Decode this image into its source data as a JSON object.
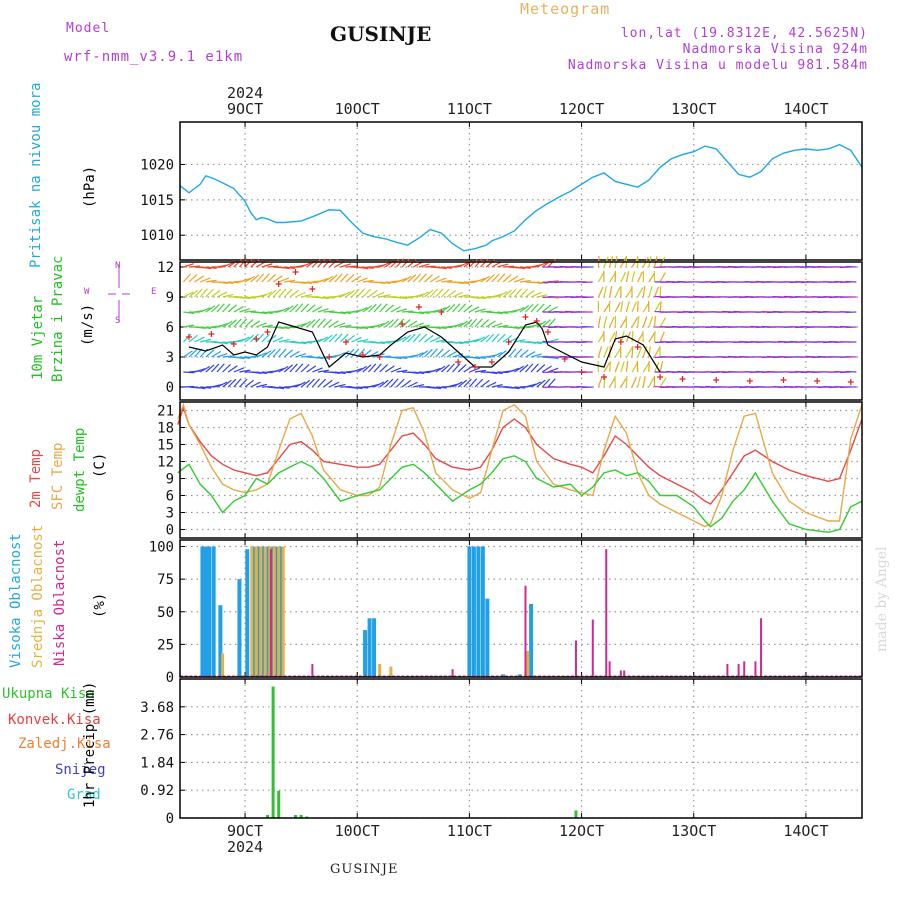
{
  "header": {
    "title": "GUSINJE",
    "model_label": "Model",
    "model_name": "wrf-nmm_v3.9.1 e1km",
    "meteogram_label": "Meteogram",
    "lonlat": "lon,lat (19.8312E, 42.5625N)",
    "elevation": "Nadmorska Visina 924m",
    "model_elevation": "Nadmorska Visina u modelu 981.584m"
  },
  "footer": {
    "station": "GUSINJE",
    "credit": "made by Angel"
  },
  "colors": {
    "pressure": "#1fa8e6",
    "temp2m": "#e84848",
    "sfc": "#e8a848",
    "dewpt": "#30cc30",
    "high_cloud": "#20a0e8",
    "mid_cloud": "#e8b040",
    "low_cloud": "#d02890",
    "total_precip": "#30c030",
    "conv_precip": "#e84040",
    "frz_precip": "#f08030",
    "snow": "#4040d0",
    "grad": "#30c8c8",
    "wind_gust": "#e02020",
    "wind_speed": "#000000"
  },
  "time_axis": {
    "ticks": [
      "9OCT",
      "10OCT",
      "11OCT",
      "12OCT",
      "13OCT",
      "14OCT"
    ],
    "year": "2024",
    "start": "2024-10-08T10:00",
    "end": "2024-10-14T12:00"
  },
  "panels": {
    "pressure": {
      "label": "Pritisak na nivou mora",
      "unit": "(hPa)"
    },
    "wind": {
      "label1": "10m Vjetar",
      "label2": "Brzina i Pravac",
      "unit": "(m/s)",
      "compass": {
        "w": "W",
        "e": "E",
        "n": "N",
        "s": "S"
      }
    },
    "temp": {
      "label_2m": "2m Temp",
      "label_sfc": "SFC Temp",
      "label_dew": "dewpt Temp",
      "unit": "(C)"
    },
    "cloud": {
      "label_high": "Visoka Oblacnost",
      "label_mid": "Srednja Oblacnost",
      "label_low": "Niska Oblacnost",
      "unit": "(%)"
    },
    "precip": {
      "labels": [
        "Ukupna Kisa",
        "Konvek.Kisa",
        "Zaledj.Kisa",
        "Snijeg",
        "Grad"
      ],
      "unit": "1hr Precip (mm)"
    }
  },
  "chart_data": [
    {
      "type": "line",
      "title": "",
      "ylabel": "(hPa)",
      "ylim": [
        1006.5,
        1026
      ],
      "yticks": [
        1010,
        1015,
        1020
      ],
      "series": [
        {
          "name": "Pritisak na nivou mora",
          "x_days": [
            8.42,
            8.5,
            8.6,
            8.65,
            8.72,
            8.8,
            8.9,
            9.0,
            9.05,
            9.1,
            9.15,
            9.2,
            9.28,
            9.35,
            9.5,
            9.6,
            9.75,
            9.85,
            9.95,
            10.05,
            10.15,
            10.25,
            10.35,
            10.45,
            10.55,
            10.65,
            10.75,
            10.85,
            10.95,
            11.05,
            11.15,
            11.2,
            11.3,
            11.4,
            11.5,
            11.6,
            11.7,
            11.8,
            11.9,
            12.0,
            12.1,
            12.2,
            12.3,
            12.4,
            12.5,
            12.6,
            12.7,
            12.8,
            12.9,
            13.0,
            13.1,
            13.2,
            13.3,
            13.4,
            13.5,
            13.6,
            13.7,
            13.8,
            13.9,
            14.0,
            14.1,
            14.2,
            14.3,
            14.4,
            14.5
          ],
          "values": [
            1017.0,
            1016.0,
            1017.2,
            1018.4,
            1018.0,
            1017.4,
            1016.6,
            1014.8,
            1013.2,
            1012.2,
            1012.5,
            1012.3,
            1011.8,
            1011.8,
            1012.0,
            1012.6,
            1013.6,
            1013.5,
            1011.8,
            1010.3,
            1009.8,
            1009.5,
            1009.0,
            1008.6,
            1009.6,
            1010.8,
            1010.3,
            1008.8,
            1007.8,
            1008.1,
            1008.6,
            1009.2,
            1009.8,
            1010.6,
            1012.2,
            1013.5,
            1014.5,
            1015.4,
            1016.2,
            1017.2,
            1018.2,
            1018.8,
            1017.6,
            1017.2,
            1016.8,
            1017.8,
            1019.6,
            1020.8,
            1021.4,
            1021.8,
            1022.6,
            1022.2,
            1020.4,
            1018.6,
            1018.2,
            1019.0,
            1020.8,
            1021.6,
            1022.0,
            1022.2,
            1022.0,
            1022.2,
            1022.8,
            1022.0,
            1019.6
          ]
        }
      ]
    },
    {
      "type": "line",
      "title": "",
      "ylabel": "(m/s)",
      "ylim": [
        -1.3,
        12.5
      ],
      "yticks": [
        0,
        3,
        6,
        9,
        12
      ],
      "series": [
        {
          "name": "wind speed",
          "x_days": [
            8.5,
            8.65,
            8.8,
            8.9,
            9.0,
            9.1,
            9.2,
            9.3,
            9.45,
            9.6,
            9.75,
            9.9,
            10.05,
            10.2,
            10.3,
            10.45,
            10.6,
            10.75,
            10.9,
            11.05,
            11.2,
            11.35,
            11.5,
            11.6,
            11.65,
            11.7,
            12.0,
            12.2,
            12.3,
            12.4,
            12.55,
            12.7
          ],
          "values": [
            4.0,
            3.6,
            4.2,
            3.2,
            3.5,
            3.2,
            4.0,
            6.5,
            6.0,
            5.5,
            2.0,
            3.4,
            3.0,
            3.2,
            4.2,
            5.5,
            6.0,
            5.0,
            3.5,
            2.0,
            2.0,
            3.5,
            6.2,
            6.5,
            5.8,
            4.2,
            2.5,
            2.0,
            4.8,
            5.1,
            4.2,
            1.5
          ]
        },
        {
          "name": "wind gust",
          "x_days": [
            8.5,
            8.7,
            8.9,
            9.1,
            9.2,
            9.3,
            9.45,
            9.6,
            9.75,
            9.9,
            10.05,
            10.2,
            10.4,
            10.55,
            10.75,
            10.9,
            11.05,
            11.2,
            11.35,
            11.5,
            11.6,
            11.7,
            11.85,
            12.0,
            12.2,
            12.35,
            12.5,
            12.7,
            12.9,
            13.2,
            13.5,
            13.8,
            14.1,
            14.4
          ],
          "values": [
            5.0,
            5.3,
            4.3,
            4.8,
            5.5,
            10.3,
            11.5,
            9.8,
            3.0,
            4.5,
            3.2,
            3.0,
            6.3,
            8.0,
            7.5,
            2.5,
            2.0,
            2.5,
            4.5,
            7.0,
            6.6,
            5.5,
            2.8,
            1.5,
            1.0,
            4.5,
            4.0,
            1.0,
            0.8,
            0.7,
            0.6,
            0.7,
            0.6,
            0.5
          ]
        }
      ]
    },
    {
      "type": "line",
      "title": "",
      "ylabel": "(C)",
      "ylim": [
        -1.5,
        22.5
      ],
      "yticks": [
        0,
        3,
        6,
        9,
        12,
        15,
        18,
        21
      ],
      "series": [
        {
          "name": "2m Temp",
          "x_days": [
            8.4,
            8.45,
            8.5,
            8.6,
            8.7,
            8.8,
            8.9,
            9.0,
            9.1,
            9.2,
            9.3,
            9.4,
            9.5,
            9.6,
            9.7,
            9.85,
            10.0,
            10.1,
            10.2,
            10.3,
            10.4,
            10.5,
            10.6,
            10.7,
            10.85,
            11.0,
            11.1,
            11.2,
            11.3,
            11.4,
            11.5,
            11.6,
            11.75,
            11.9,
            12.0,
            12.1,
            12.2,
            12.3,
            12.4,
            12.5,
            12.6,
            12.7,
            12.85,
            13.0,
            13.1,
            13.15,
            13.25,
            13.35,
            13.45,
            13.55,
            13.7,
            13.85,
            14.0,
            14.2,
            14.3,
            14.4,
            14.5
          ],
          "values": [
            18.5,
            21.5,
            18.5,
            15.5,
            13.0,
            11.5,
            10.5,
            10.0,
            9.5,
            10.0,
            12.5,
            15.0,
            15.5,
            14.0,
            12.0,
            11.5,
            11.0,
            11.0,
            11.5,
            14.0,
            16.5,
            17.0,
            15.0,
            12.5,
            11.0,
            10.5,
            11.0,
            14.0,
            18.0,
            19.5,
            18.0,
            15.0,
            12.5,
            11.5,
            11.0,
            10.0,
            13.0,
            16.5,
            15.0,
            13.0,
            11.0,
            9.5,
            8.0,
            6.5,
            5.0,
            4.5,
            7.0,
            10.0,
            13.0,
            14.0,
            12.0,
            10.5,
            9.5,
            8.5,
            9.0,
            14.0,
            19.5
          ]
        },
        {
          "name": "SFC Temp",
          "x_days": [
            8.4,
            8.45,
            8.5,
            8.6,
            8.7,
            8.8,
            8.9,
            9.0,
            9.1,
            9.2,
            9.3,
            9.4,
            9.5,
            9.6,
            9.7,
            9.85,
            10.0,
            10.1,
            10.2,
            10.3,
            10.4,
            10.5,
            10.6,
            10.7,
            10.85,
            11.0,
            11.1,
            11.2,
            11.3,
            11.4,
            11.5,
            11.6,
            11.75,
            11.9,
            12.0,
            12.1,
            12.2,
            12.3,
            12.4,
            12.5,
            12.6,
            12.7,
            12.85,
            13.0,
            13.1,
            13.15,
            13.25,
            13.35,
            13.45,
            13.55,
            13.7,
            13.85,
            14.0,
            14.2,
            14.3,
            14.4,
            14.5
          ],
          "values": [
            19.5,
            22.0,
            18.5,
            15.0,
            11.0,
            8.0,
            7.0,
            6.5,
            7.0,
            8.0,
            14.0,
            19.5,
            20.5,
            16.5,
            10.5,
            7.0,
            6.0,
            6.0,
            7.5,
            15.0,
            21.0,
            21.5,
            17.0,
            10.0,
            7.0,
            5.5,
            6.5,
            14.0,
            21.0,
            22.0,
            20.0,
            12.0,
            8.0,
            7.0,
            6.5,
            6.0,
            14.0,
            20.0,
            17.0,
            10.0,
            6.0,
            4.5,
            3.0,
            1.5,
            0.5,
            1.0,
            6.0,
            14.0,
            20.0,
            20.5,
            10.0,
            5.0,
            3.0,
            1.5,
            1.5,
            16.0,
            22.0
          ]
        },
        {
          "name": "dewpt Temp",
          "x_days": [
            8.4,
            8.5,
            8.6,
            8.7,
            8.8,
            8.9,
            9.0,
            9.1,
            9.2,
            9.3,
            9.4,
            9.5,
            9.6,
            9.7,
            9.85,
            10.0,
            10.1,
            10.2,
            10.3,
            10.4,
            10.5,
            10.6,
            10.7,
            10.85,
            11.0,
            11.1,
            11.2,
            11.3,
            11.4,
            11.5,
            11.6,
            11.75,
            11.9,
            12.0,
            12.1,
            12.2,
            12.3,
            12.4,
            12.5,
            12.6,
            12.7,
            12.85,
            13.0,
            13.1,
            13.15,
            13.25,
            13.35,
            13.45,
            13.55,
            13.7,
            13.85,
            14.0,
            14.2,
            14.3,
            14.4,
            14.5
          ],
          "values": [
            10.0,
            11.5,
            8.0,
            6.0,
            3.0,
            5.0,
            6.0,
            9.0,
            8.0,
            10.0,
            11.0,
            12.0,
            11.0,
            9.0,
            5.0,
            6.0,
            6.5,
            7.0,
            9.0,
            11.0,
            11.5,
            10.0,
            8.0,
            5.0,
            7.0,
            8.0,
            10.0,
            12.5,
            13.0,
            12.0,
            9.0,
            7.5,
            8.0,
            6.0,
            7.5,
            10.0,
            10.5,
            9.5,
            10.0,
            8.5,
            6.0,
            6.0,
            4.0,
            1.5,
            0.5,
            2.0,
            5.0,
            7.0,
            10.0,
            5.0,
            1.0,
            0.0,
            -0.5,
            0.0,
            4.0,
            5.0
          ]
        }
      ]
    },
    {
      "type": "bar",
      "title": "",
      "ylabel": "(%)",
      "ylim": [
        0,
        105
      ],
      "yticks": [
        0,
        25,
        50,
        75,
        100
      ],
      "series": [
        {
          "name": "Visoka Oblacnost",
          "x_days": [
            8.62,
            8.65,
            8.68,
            8.72,
            8.78,
            8.95,
            9.02,
            9.08,
            9.12,
            9.16,
            9.2,
            9.24,
            9.28,
            9.32,
            10.07,
            10.11,
            10.15,
            11.0,
            11.04,
            11.08,
            11.12,
            11.16,
            11.3,
            11.45,
            11.55,
            11.58
          ],
          "values": [
            100,
            100,
            100,
            100,
            55,
            75,
            98,
            100,
            100,
            100,
            100,
            100,
            100,
            100,
            36,
            45,
            45,
            100,
            100,
            100,
            100,
            60,
            2,
            2,
            56,
            0
          ]
        },
        {
          "name": "Srednja Oblacnost",
          "x_days": [
            8.8,
            9.06,
            9.1,
            9.14,
            9.18,
            9.22,
            9.26,
            9.3,
            9.34,
            10.2,
            10.3,
            11.52
          ],
          "values": [
            18,
            100,
            100,
            100,
            100,
            100,
            100,
            100,
            100,
            10,
            8,
            20
          ]
        },
        {
          "name": "Niska Oblacnost",
          "x_days": [
            9.23,
            9.6,
            10.85,
            11.5,
            11.95,
            12.1,
            12.12,
            12.22,
            12.25,
            12.35,
            12.38,
            13.3,
            13.4,
            13.45,
            13.55,
            13.6,
            15.18
          ],
          "values": [
            98,
            10,
            6,
            70,
            28,
            44,
            0,
            98,
            12,
            5,
            5,
            10,
            10,
            12,
            12,
            45,
            0
          ]
        }
      ]
    },
    {
      "type": "bar",
      "title": "",
      "ylabel": "1hr Precip (mm)",
      "ylim": [
        0,
        4.6
      ],
      "yticks": [
        0,
        0.92,
        1.84,
        2.76,
        3.68
      ],
      "series": [
        {
          "name": "Ukupna Kisa",
          "x_days": [
            9.2,
            9.25,
            9.3,
            9.45,
            9.5,
            9.55,
            11.95
          ],
          "values": [
            0.1,
            4.35,
            0.9,
            0.1,
            0.1,
            0.05,
            0.25
          ]
        }
      ]
    }
  ]
}
